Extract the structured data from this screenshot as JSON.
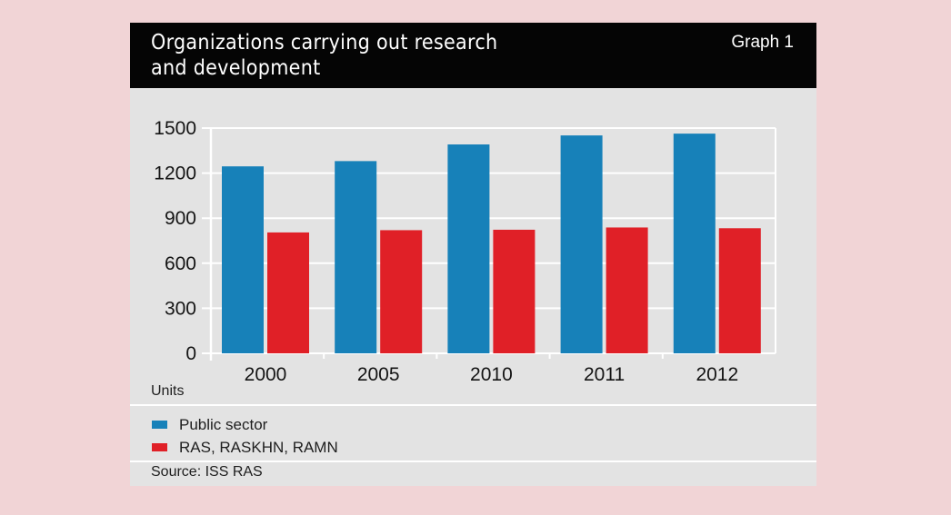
{
  "header": {
    "title": "Organizations carrying out research and development",
    "graph_label": "Graph 1"
  },
  "units_label": "Units",
  "source": "Source: ISS RAS",
  "colors": {
    "public_sector": "#1781b9",
    "ras": "#e02027",
    "background": "#f1d4d6",
    "panel": "#e3e3e3",
    "header": "#050505"
  },
  "chart_data": {
    "type": "bar",
    "title": "Organizations carrying out research and development",
    "xlabel": "",
    "ylabel": "Units",
    "categories": [
      "2000",
      "2005",
      "2010",
      "2011",
      "2012"
    ],
    "series": [
      {
        "name": "Public sector",
        "color": "#1781b9",
        "values": [
          1245,
          1280,
          1391,
          1451,
          1463
        ]
      },
      {
        "name": "RAS, RASKHN, RAMN",
        "color": "#e02027",
        "values": [
          805,
          820,
          823,
          838,
          833
        ]
      }
    ],
    "ylim": [
      0,
      1500
    ],
    "yticks": [
      "0",
      "300",
      "600",
      "900",
      "1200",
      "1500"
    ],
    "grid": true,
    "legend_position": "bottom-left",
    "source": "Source: ISS RAS"
  }
}
